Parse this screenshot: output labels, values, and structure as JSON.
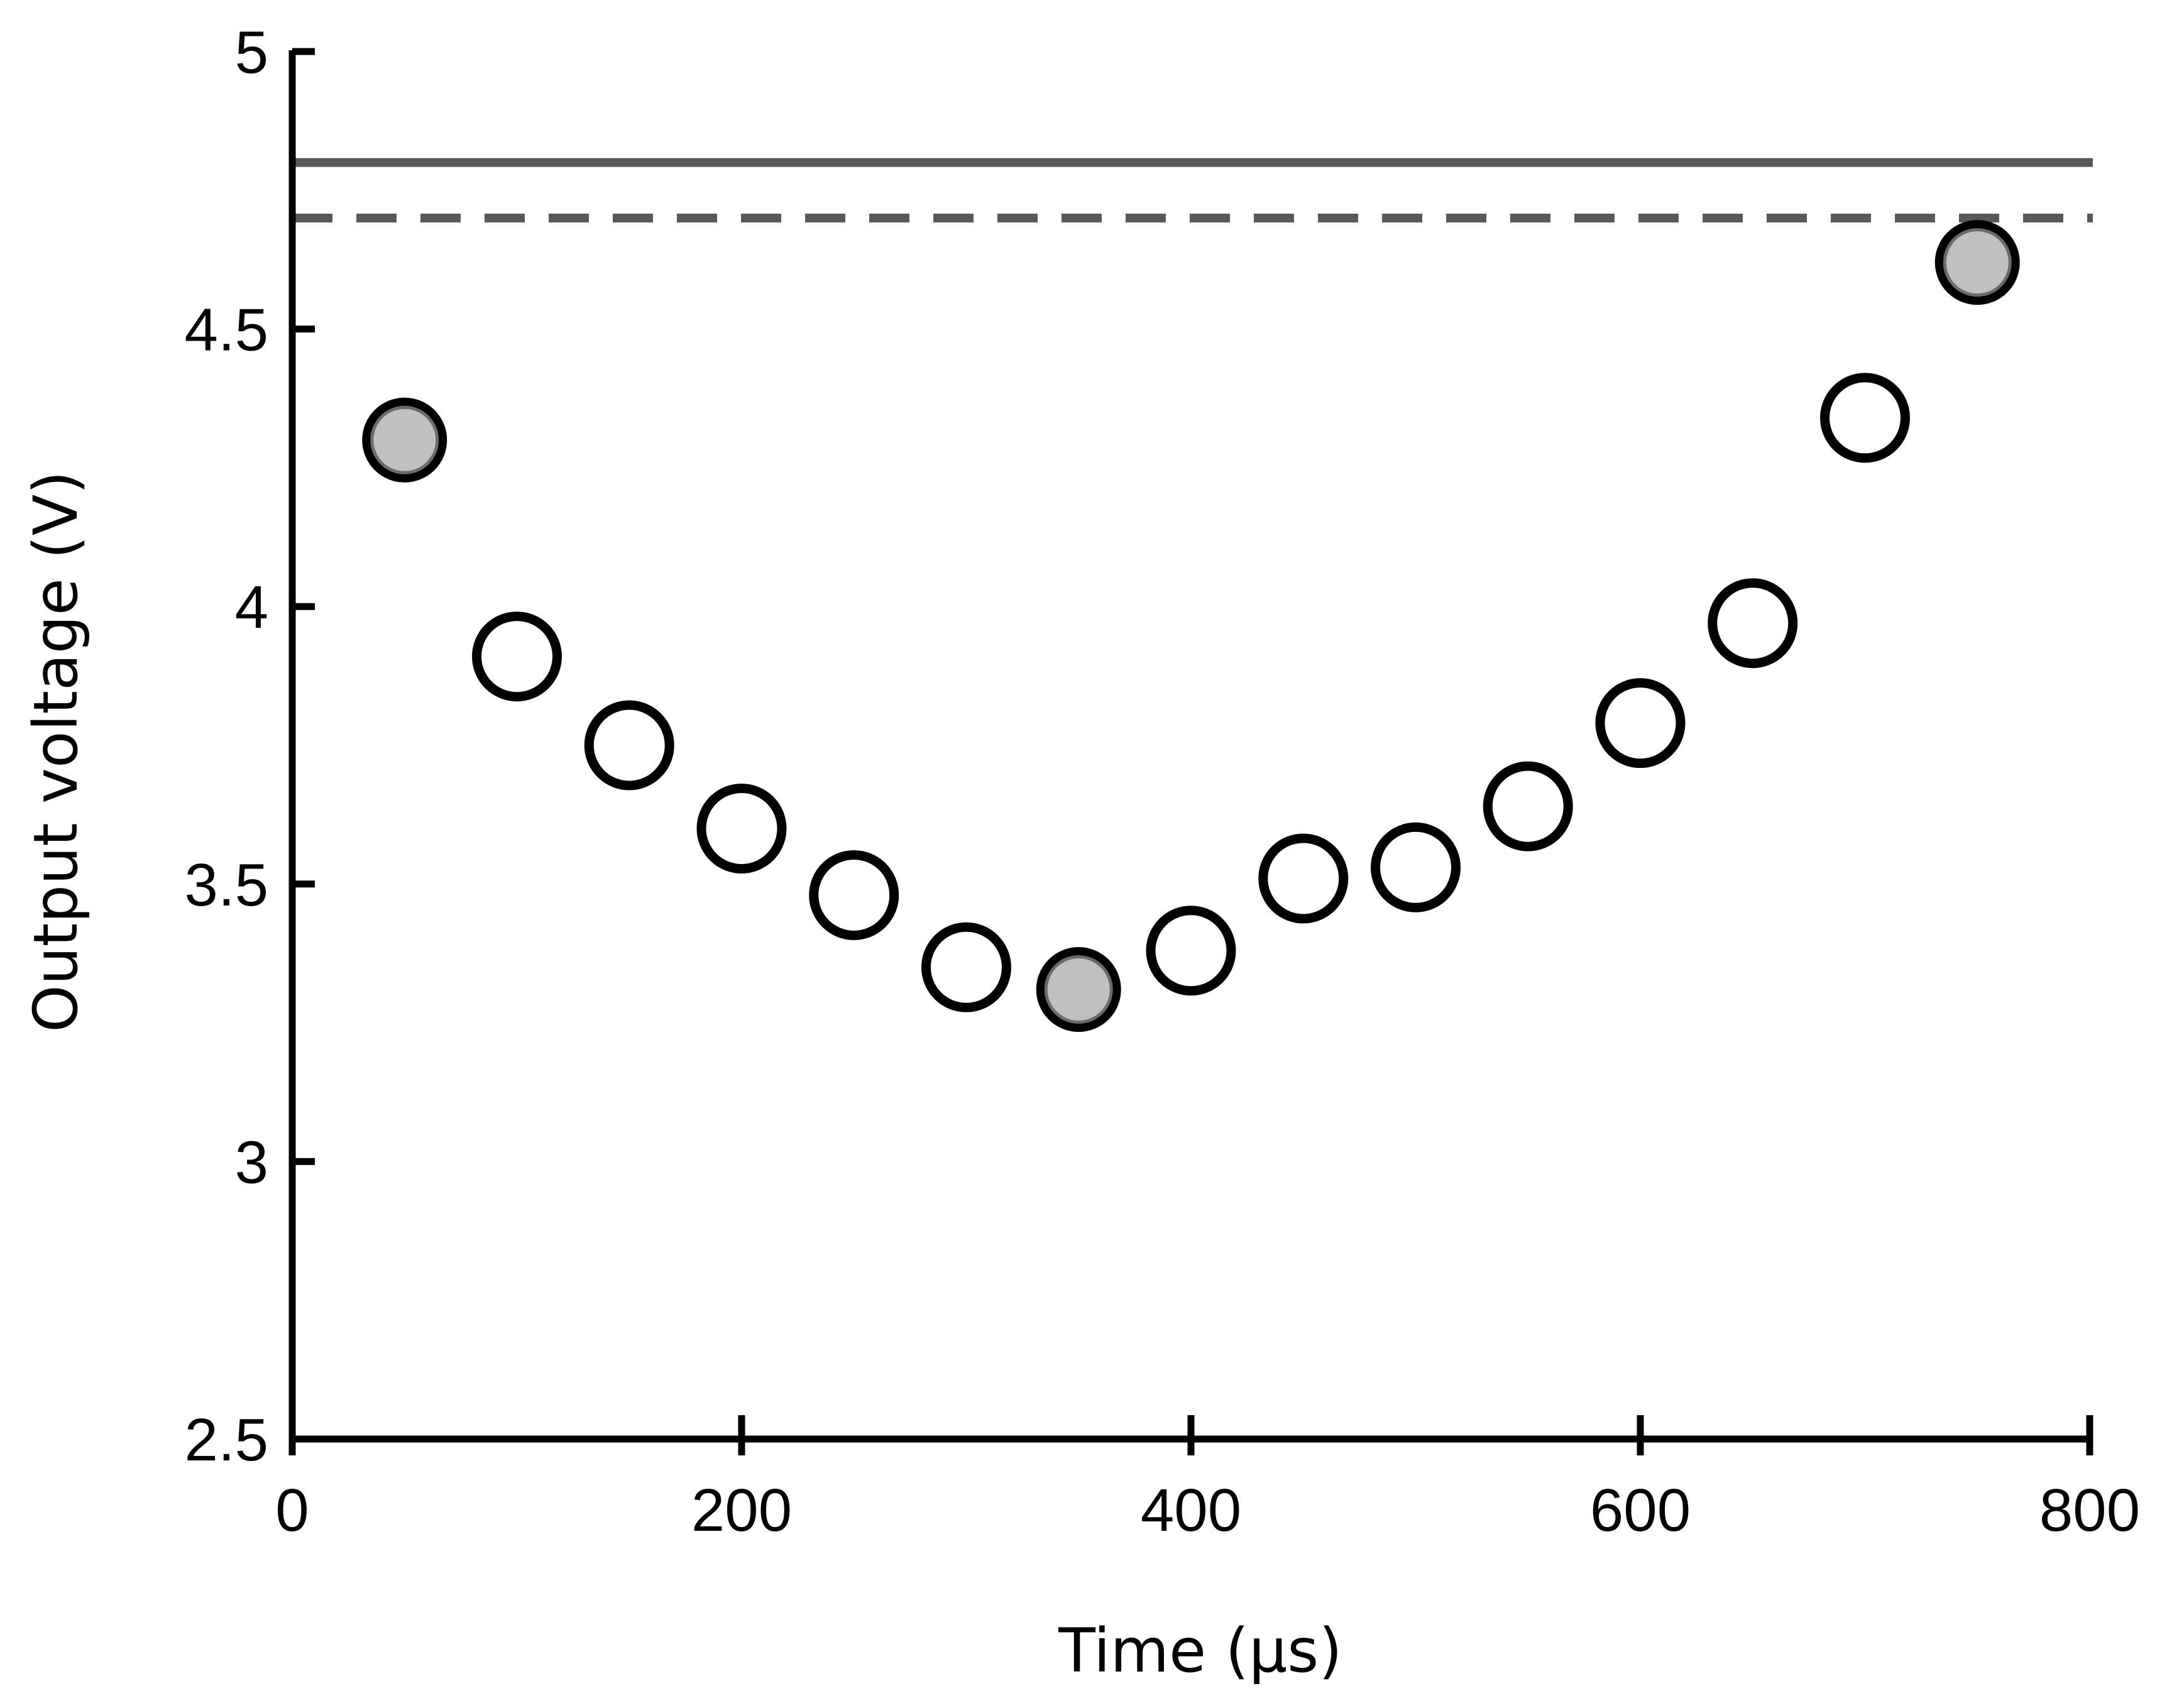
{
  "chart_data": {
    "type": "scatter",
    "title": "",
    "xlabel": "Time (μs)",
    "ylabel": "Output voltage (V)",
    "xlim": [
      0,
      800
    ],
    "ylim": [
      2.5,
      5
    ],
    "x_ticks": [
      0,
      200,
      400,
      600,
      800
    ],
    "y_ticks": [
      2.5,
      3,
      3.5,
      4,
      4.5,
      5
    ],
    "x_tick_labels": [
      "0",
      "200",
      "400",
      "600",
      "800"
    ],
    "y_tick_labels": [
      "2.5",
      "3",
      "3.5",
      "4",
      "4.5",
      "5"
    ],
    "grid": false,
    "legend": "none",
    "reference_lines": [
      {
        "style": "solid",
        "y": 4.8,
        "color": "#595959"
      },
      {
        "style": "dashed",
        "y": 4.7,
        "color": "#595959"
      }
    ],
    "points": [
      {
        "x": 50,
        "y": 4.3,
        "filled": true
      },
      {
        "x": 100,
        "y": 3.91,
        "filled": false
      },
      {
        "x": 150,
        "y": 3.75,
        "filled": false
      },
      {
        "x": 200,
        "y": 3.6,
        "filled": false
      },
      {
        "x": 250,
        "y": 3.48,
        "filled": false
      },
      {
        "x": 300,
        "y": 3.35,
        "filled": false
      },
      {
        "x": 350,
        "y": 3.31,
        "filled": true
      },
      {
        "x": 400,
        "y": 3.38,
        "filled": false
      },
      {
        "x": 450,
        "y": 3.51,
        "filled": false
      },
      {
        "x": 500,
        "y": 3.53,
        "filled": false
      },
      {
        "x": 550,
        "y": 3.64,
        "filled": false
      },
      {
        "x": 600,
        "y": 3.79,
        "filled": false
      },
      {
        "x": 650,
        "y": 3.97,
        "filled": false
      },
      {
        "x": 700,
        "y": 4.34,
        "filled": false
      },
      {
        "x": 750,
        "y": 4.62,
        "filled": true
      }
    ],
    "colors": {
      "axis": "#000000",
      "marker_stroke": "#000000",
      "marker_open_fill": "#ffffff",
      "marker_filled_fill": "#c0c0c0"
    }
  }
}
